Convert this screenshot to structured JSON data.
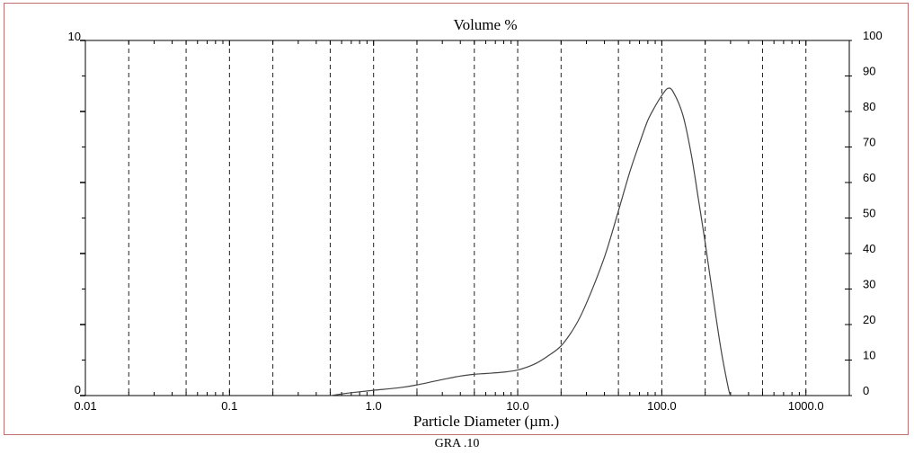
{
  "chart_data": {
    "type": "line",
    "title": "Volume %",
    "xlabel": "Particle Diameter (µm.)",
    "x_scale": "log",
    "xlim": [
      0.01,
      2000
    ],
    "x_ticks": [
      0.01,
      0.1,
      1.0,
      10.0,
      100.0,
      1000.0
    ],
    "x_tick_labels": [
      "0.01",
      "0.1",
      "1.0",
      "10.0",
      "100.0",
      "1000.0"
    ],
    "dashed_gridlines_x": [
      0.02,
      0.05,
      0.1,
      0.2,
      0.5,
      1,
      2,
      5,
      10,
      20,
      50,
      100,
      200,
      500,
      1000
    ],
    "y_left_range": [
      0,
      10
    ],
    "y_left_labels": [
      "0",
      "10"
    ],
    "y_right_range": [
      0,
      100
    ],
    "y_right_labels": [
      "0",
      "10",
      "20",
      "30",
      "40",
      "50",
      "60",
      "70",
      "80",
      "90",
      "100"
    ],
    "grid": true,
    "series": [
      {
        "x": [
          0.5,
          0.7,
          1.0,
          1.5,
          2.0,
          3.0,
          4.0,
          5.0,
          6.0,
          8.0,
          10.0,
          13.0,
          16.0,
          20.0,
          25.0,
          30.0,
          40.0,
          50.0,
          60.0,
          70.0,
          80.0,
          90.0,
          100.0,
          110.0,
          120.0,
          140.0,
          160.0,
          180.0,
          200.0,
          230.0,
          260.0,
          290.0,
          300.0
        ],
        "y": [
          0.0,
          0.08,
          0.15,
          0.22,
          0.3,
          0.45,
          0.55,
          0.6,
          0.62,
          0.66,
          0.72,
          0.88,
          1.1,
          1.4,
          1.95,
          2.6,
          3.9,
          5.2,
          6.3,
          7.1,
          7.75,
          8.15,
          8.45,
          8.65,
          8.55,
          7.9,
          6.8,
          5.5,
          4.3,
          2.6,
          1.2,
          0.2,
          0.0
        ]
      }
    ]
  },
  "caption": "GRA .10"
}
